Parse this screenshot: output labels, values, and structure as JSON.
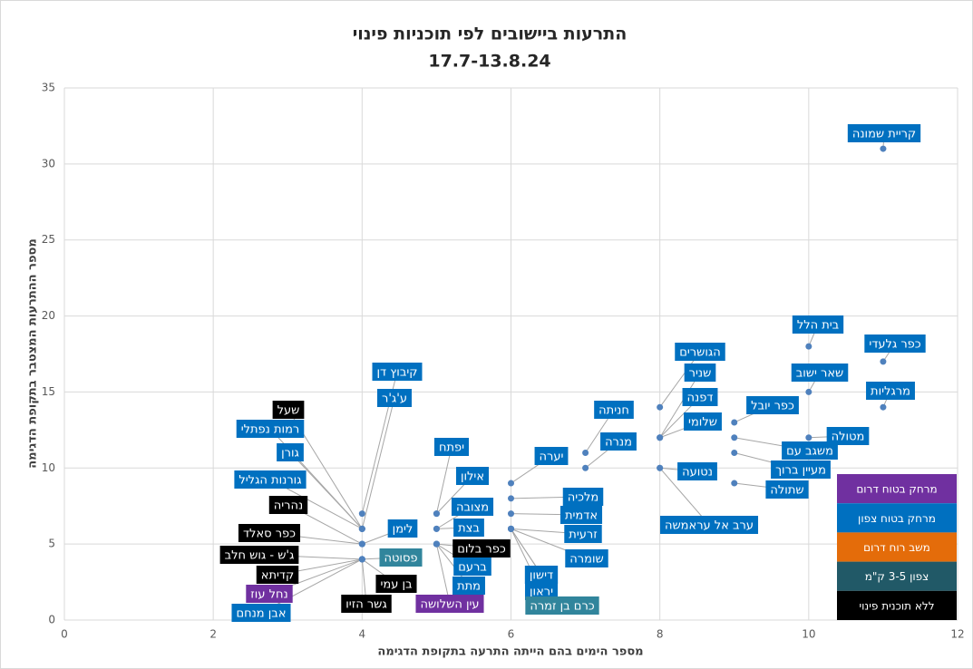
{
  "chart_data": {
    "type": "scatter",
    "title": "התרעות ביישובים לפי תוכניות פינוי",
    "subtitle": "17.7-13.8.24",
    "xlabel": "מספר הימים בהם הייתה התרעה בתקופת הדגימה",
    "ylabel": "מספר ההתרעות המצטבר בתקופת הדגימה",
    "xlim": [
      0,
      12
    ],
    "xticks": [
      0,
      2,
      4,
      6,
      8,
      10,
      12
    ],
    "ylim": [
      0,
      35
    ],
    "yticks": [
      0,
      5,
      10,
      15,
      20,
      25,
      30,
      35
    ],
    "grid": true,
    "point_color": "#4f81bd",
    "series": [
      {
        "name": "מרחק בטוח דרום",
        "color": "#7030a0",
        "labels": [
          "נחל עוז",
          "עין השלושה"
        ],
        "x": [
          4,
          5
        ],
        "values": [
          4,
          5
        ]
      },
      {
        "name": "מרחק בטוח צפון",
        "color": "#0070c0",
        "labels": [
          "קריית שמונה",
          "בית הלל",
          "כפר גלעדי",
          "שאר ישוב",
          "מרגליות",
          "מטולה",
          "כפר יובל",
          "משגב עם",
          "מעיין ברוך",
          "שתולה",
          "הגושרים",
          "שניר",
          "דפנה",
          "שלומי",
          "נטועה",
          "ערב אל עראמשה",
          "חניתה",
          "מנרה",
          "יערה",
          "מלכיה",
          "אדמית",
          "זרעית",
          "שומרה",
          "דישון",
          "יראון",
          "יפתח",
          "אילון",
          "מצובה",
          "בצת",
          "ברעם",
          "מתת",
          "קיבוץ דן",
          "ע'ג'ר",
          "רמות נפתלי",
          "גורן",
          "גורנות הגליל",
          "לימן",
          "אבן מנחם"
        ],
        "x": [
          11,
          10,
          11,
          10,
          11,
          10,
          9,
          9,
          9,
          9,
          8,
          8,
          8,
          8,
          8,
          8,
          7,
          7,
          6,
          6,
          6,
          6,
          6,
          6,
          6,
          5,
          5,
          5,
          5,
          5,
          5,
          4,
          4,
          4,
          4,
          4,
          4,
          4
        ],
        "values": [
          31,
          18,
          17,
          15,
          14,
          12,
          13,
          12,
          11,
          9,
          14,
          12,
          12,
          12,
          10,
          10,
          11,
          10,
          9,
          8,
          7,
          6,
          6,
          6,
          6,
          7,
          7,
          6,
          6,
          5,
          5,
          7,
          6,
          6,
          6,
          6,
          5,
          4
        ]
      },
      {
        "name": "משב רוח דרום",
        "color": "#e46c0a",
        "labels": [],
        "x": [],
        "values": []
      },
      {
        "name": "צפון 3-5 ק\"מ",
        "color": "#215967",
        "point_label_color": "#31859c",
        "labels": [
          "פסוטה",
          "כרם בן זמרה"
        ],
        "x": [
          4,
          6
        ],
        "values": [
          4,
          6
        ]
      },
      {
        "name": "ללא תוכנית פינוי",
        "color": "#000000",
        "labels": [
          "שעל",
          "נהריה",
          "כפר סאלד",
          "ג'ש - גוש חלב",
          "קדיתא",
          "בן עמי",
          "גשר הזיו",
          "כפר בלום"
        ],
        "x": [
          4,
          4,
          4,
          4,
          4,
          4,
          4,
          5
        ],
        "values": [
          6,
          5,
          5,
          4,
          4,
          4,
          4,
          5
        ]
      }
    ]
  }
}
